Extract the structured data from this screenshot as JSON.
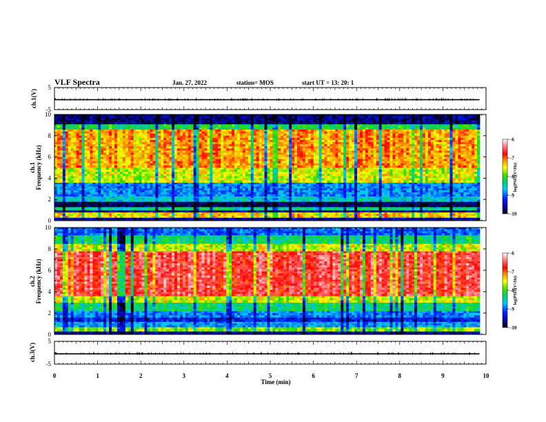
{
  "header": {
    "title": "VLF Spectra",
    "date": "Jan. 27, 2022",
    "station": "station= MOS",
    "start": "start  UT =   13: 20: 1"
  },
  "chart_data": [
    {
      "type": "line",
      "panel": "ch1-waveform",
      "ylabel": "ch.1(V)",
      "ylim": [
        -5,
        5
      ],
      "yticks": [
        "5",
        "-5"
      ],
      "series": [
        {
          "values_note": "",
          "level": -0.5
        }
      ],
      "x": [
        0,
        9.85
      ],
      "y": [
        -0.5,
        -0.5
      ]
    },
    {
      "type": "heatmap",
      "panel": "ch1-spectrogram",
      "ylabel": "ch.1",
      "ylabel2": "Frequency (kHz)",
      "ylim": [
        0,
        10
      ],
      "yticks": [
        "0",
        "2",
        "4",
        "6",
        "8",
        "10"
      ],
      "xlim": [
        0,
        10
      ],
      "bands": [
        {
          "f": [
            0,
            0.3
          ],
          "level": -9.6
        },
        {
          "f": [
            0.3,
            0.8
          ],
          "level": -7.4
        },
        {
          "f": [
            0.8,
            1.0
          ],
          "level": -9.5
        },
        {
          "f": [
            1.0,
            1.3
          ],
          "level": -8.4
        },
        {
          "f": [
            1.3,
            1.8
          ],
          "level": -9.8
        },
        {
          "f": [
            1.8,
            2.3
          ],
          "level": -8.6
        },
        {
          "f": [
            2.3,
            3.6
          ],
          "level": -8.9
        },
        {
          "f": [
            3.6,
            5.0
          ],
          "level": -7.6
        },
        {
          "f": [
            5.0,
            8.6
          ],
          "level": -7.2
        },
        {
          "f": [
            8.6,
            9.1
          ],
          "level": -8.2
        },
        {
          "f": [
            9.1,
            10
          ],
          "level": -9.7
        }
      ],
      "colorbar": {
        "label": "log(PSD)(V²/Hz)",
        "ticks": [
          "-6",
          "-7",
          "-8",
          "-9",
          "-10"
        ],
        "range": [
          -10,
          -6
        ]
      }
    },
    {
      "type": "heatmap",
      "panel": "ch2-spectrogram",
      "ylabel": "ch.2",
      "ylabel2": "Frequency (kHz)",
      "ylim": [
        0,
        10
      ],
      "yticks": [
        "0",
        "2",
        "4",
        "6",
        "8",
        "10"
      ],
      "xlim": [
        0,
        10
      ],
      "bands": [
        {
          "f": [
            0,
            0.3
          ],
          "level": -9.5
        },
        {
          "f": [
            0.3,
            0.7
          ],
          "level": -7.8
        },
        {
          "f": [
            0.7,
            1.2
          ],
          "level": -8.8
        },
        {
          "f": [
            1.2,
            1.6
          ],
          "level": -9.3
        },
        {
          "f": [
            1.6,
            2.2
          ],
          "level": -8.9
        },
        {
          "f": [
            2.2,
            3.0
          ],
          "level": -8.3
        },
        {
          "f": [
            3.0,
            3.6
          ],
          "level": -7.6
        },
        {
          "f": [
            3.6,
            7.8
          ],
          "level": -6.6
        },
        {
          "f": [
            7.8,
            8.5
          ],
          "level": -7.6
        },
        {
          "f": [
            8.5,
            9.3
          ],
          "level": -8.3
        },
        {
          "f": [
            9.3,
            10
          ],
          "level": -9.0
        }
      ],
      "colorbar": {
        "label": "log(PSD)(V²/Hz)",
        "ticks": [
          "-6",
          "-7",
          "-8",
          "-9",
          "-10"
        ],
        "range": [
          -10,
          -6
        ]
      }
    },
    {
      "type": "line",
      "panel": "ch3-waveform",
      "ylabel": "ch.3(V)",
      "ylim": [
        -5,
        5
      ],
      "yticks": [
        "5",
        "-5"
      ],
      "x": [
        0,
        9.85
      ],
      "y": [
        -0.5,
        -0.5
      ]
    }
  ],
  "xaxis": {
    "label": "Time (min)",
    "ticks": [
      "0",
      "1",
      "2",
      "3",
      "4",
      "5",
      "6",
      "7",
      "8",
      "9",
      "10"
    ],
    "xlim": [
      0,
      10
    ]
  }
}
